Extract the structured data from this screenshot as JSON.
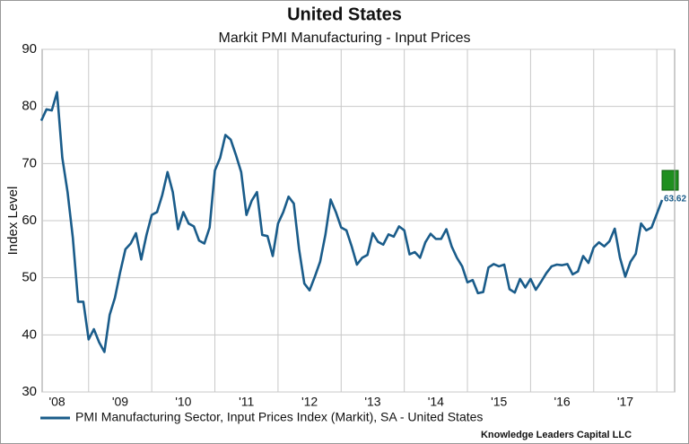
{
  "chart_data": {
    "type": "line",
    "title": "United States",
    "subtitle": "Markit PMI Manufacturing - Input Prices",
    "y_label": "Index Level",
    "source": "Knowledge Leaders Capital LLC",
    "categories": [
      null,
      null,
      null,
      "'08",
      null,
      null,
      null,
      null,
      null,
      null,
      null,
      null,
      null,
      null,
      null,
      "'09",
      null,
      null,
      null,
      null,
      null,
      null,
      null,
      null,
      null,
      null,
      null,
      "'10",
      null,
      null,
      null,
      null,
      null,
      null,
      null,
      null,
      null,
      null,
      null,
      "'11",
      null,
      null,
      null,
      null,
      null,
      null,
      null,
      null,
      null,
      null,
      null,
      "'12",
      null,
      null,
      null,
      null,
      null,
      null,
      null,
      null,
      null,
      null,
      null,
      "'13",
      null,
      null,
      null,
      null,
      null,
      null,
      null,
      null,
      null,
      null,
      null,
      "'14",
      null,
      null,
      null,
      null,
      null,
      null,
      null,
      null,
      null,
      null,
      null,
      "'15",
      null,
      null,
      null,
      null,
      null,
      null,
      null,
      null,
      null,
      null,
      null,
      "'16",
      null,
      null,
      null,
      null,
      null,
      null,
      null,
      null,
      null,
      null,
      null,
      "'17",
      null,
      null,
      null,
      null,
      null,
      null,
      null
    ],
    "series": [
      {
        "name": "PMI Manufacturing Sector, Input Prices Index (Markit), SA - United States",
        "color": "#1a5c8a",
        "values": [
          77.5,
          79.5,
          79.3,
          82.5,
          71,
          65,
          57,
          45.8,
          45.8,
          39.2,
          41,
          38.7,
          37,
          43.5,
          46.5,
          51,
          55,
          56,
          57.8,
          53.2,
          57.5,
          61,
          61.5,
          64.5,
          68.5,
          65,
          58.5,
          61.5,
          59.5,
          59,
          56.5,
          56,
          58.8,
          68.8,
          71,
          75,
          74.2,
          71.5,
          68.5,
          61,
          63.5,
          65,
          57.5,
          57.3,
          53.8,
          59.5,
          61.5,
          64.2,
          63,
          55,
          49,
          47.8,
          50.2,
          52.8,
          57.5,
          63.7,
          61.5,
          58.8,
          58.3,
          55.5,
          52.3,
          53.5,
          54,
          57.8,
          56.3,
          55.8,
          57.6,
          57.2,
          59,
          58.3,
          54.1,
          54.5,
          53.5,
          56.2,
          57.7,
          56.8,
          56.8,
          58.5,
          55.5,
          53.5,
          52,
          49.2,
          49.6,
          47.3,
          47.5,
          51.8,
          52.4,
          52,
          52.3,
          48,
          47.4,
          49.8,
          48.3,
          49.8,
          47.9,
          49.3,
          50.8,
          52,
          52.3,
          52.2,
          52.4,
          50.6,
          51.1,
          53.8,
          52.6,
          55.3,
          56.2,
          55.5,
          56.4,
          58.6,
          53.5,
          50.2,
          52.8,
          54.2,
          59.5,
          58.3,
          58.8,
          61.2,
          63.62
        ]
      }
    ],
    "ylim": [
      30,
      90
    ],
    "yticks": [
      30,
      40,
      50,
      60,
      70,
      80,
      90
    ],
    "grid": true
  }
}
